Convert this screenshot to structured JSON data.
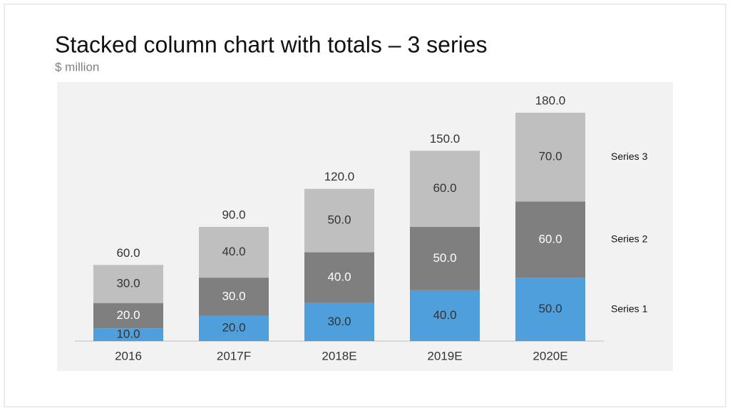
{
  "chart_data": {
    "type": "stacked-bar",
    "title": "Stacked column chart with totals – 3 series",
    "subtitle": "$ million",
    "categories": [
      "2016",
      "2017F",
      "2018E",
      "2019E",
      "2020E"
    ],
    "series": [
      {
        "name": "Series 1",
        "color": "#4e9fdc",
        "label_color": "#333333",
        "values": [
          10,
          20,
          30,
          40,
          50
        ],
        "value_labels": [
          "10.0",
          "20.0",
          "30.0",
          "40.0",
          "50.0"
        ]
      },
      {
        "name": "Series 2",
        "color": "#7f7f7f",
        "label_color": "#ffffff",
        "values": [
          20,
          30,
          40,
          50,
          60
        ],
        "value_labels": [
          "20.0",
          "30.0",
          "40.0",
          "50.0",
          "60.0"
        ]
      },
      {
        "name": "Series 3",
        "color": "#bfbfbf",
        "label_color": "#333333",
        "values": [
          30,
          40,
          50,
          60,
          70
        ],
        "value_labels": [
          "30.0",
          "40.0",
          "50.0",
          "60.0",
          "70.0"
        ]
      }
    ],
    "totals": [
      60,
      90,
      120,
      150,
      180
    ],
    "total_labels": [
      "60.0",
      "90.0",
      "120.0",
      "150.0",
      "180.0"
    ]
  }
}
